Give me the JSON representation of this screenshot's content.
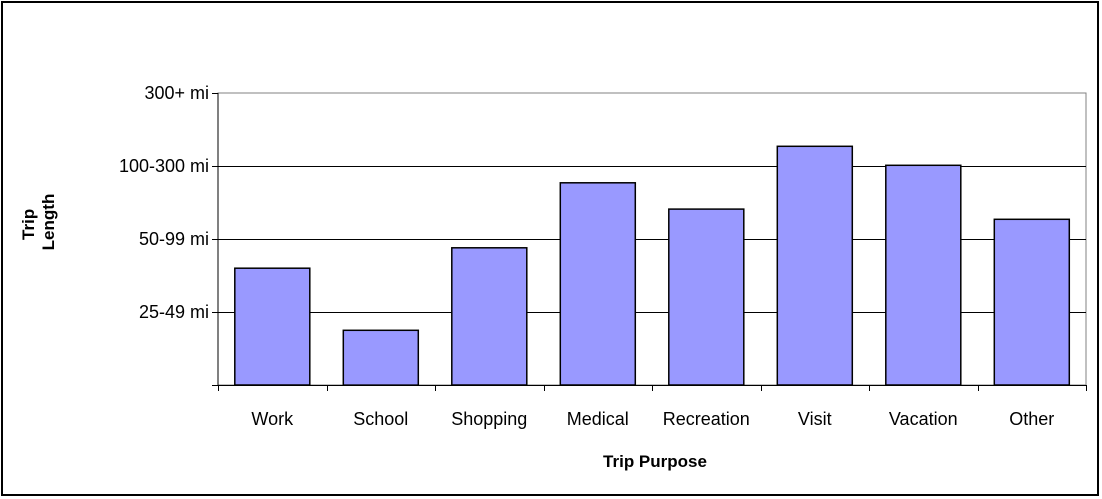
{
  "chart_data": {
    "type": "bar",
    "title": "",
    "xlabel": "Trip Purpose",
    "ylabel_lines": [
      "Trip",
      "Length"
    ],
    "y_tick_labels": [
      "",
      "25-49 mi",
      "50-99 mi",
      "100-300 mi",
      "300+ mi"
    ],
    "ylim": [
      0,
      4
    ],
    "categories": [
      "Work",
      "School",
      "Shopping",
      "Medical",
      "Recreation",
      "Visit",
      "Vacation",
      "Other"
    ],
    "values": [
      1.6,
      0.75,
      1.88,
      2.77,
      2.41,
      3.27,
      3.01,
      2.27
    ],
    "grid": true,
    "legend": "none",
    "colors": {
      "bar_fill": "#9999ff",
      "bar_stroke": "#000000",
      "plot_border": "#808080",
      "gridline": "#000000"
    }
  }
}
